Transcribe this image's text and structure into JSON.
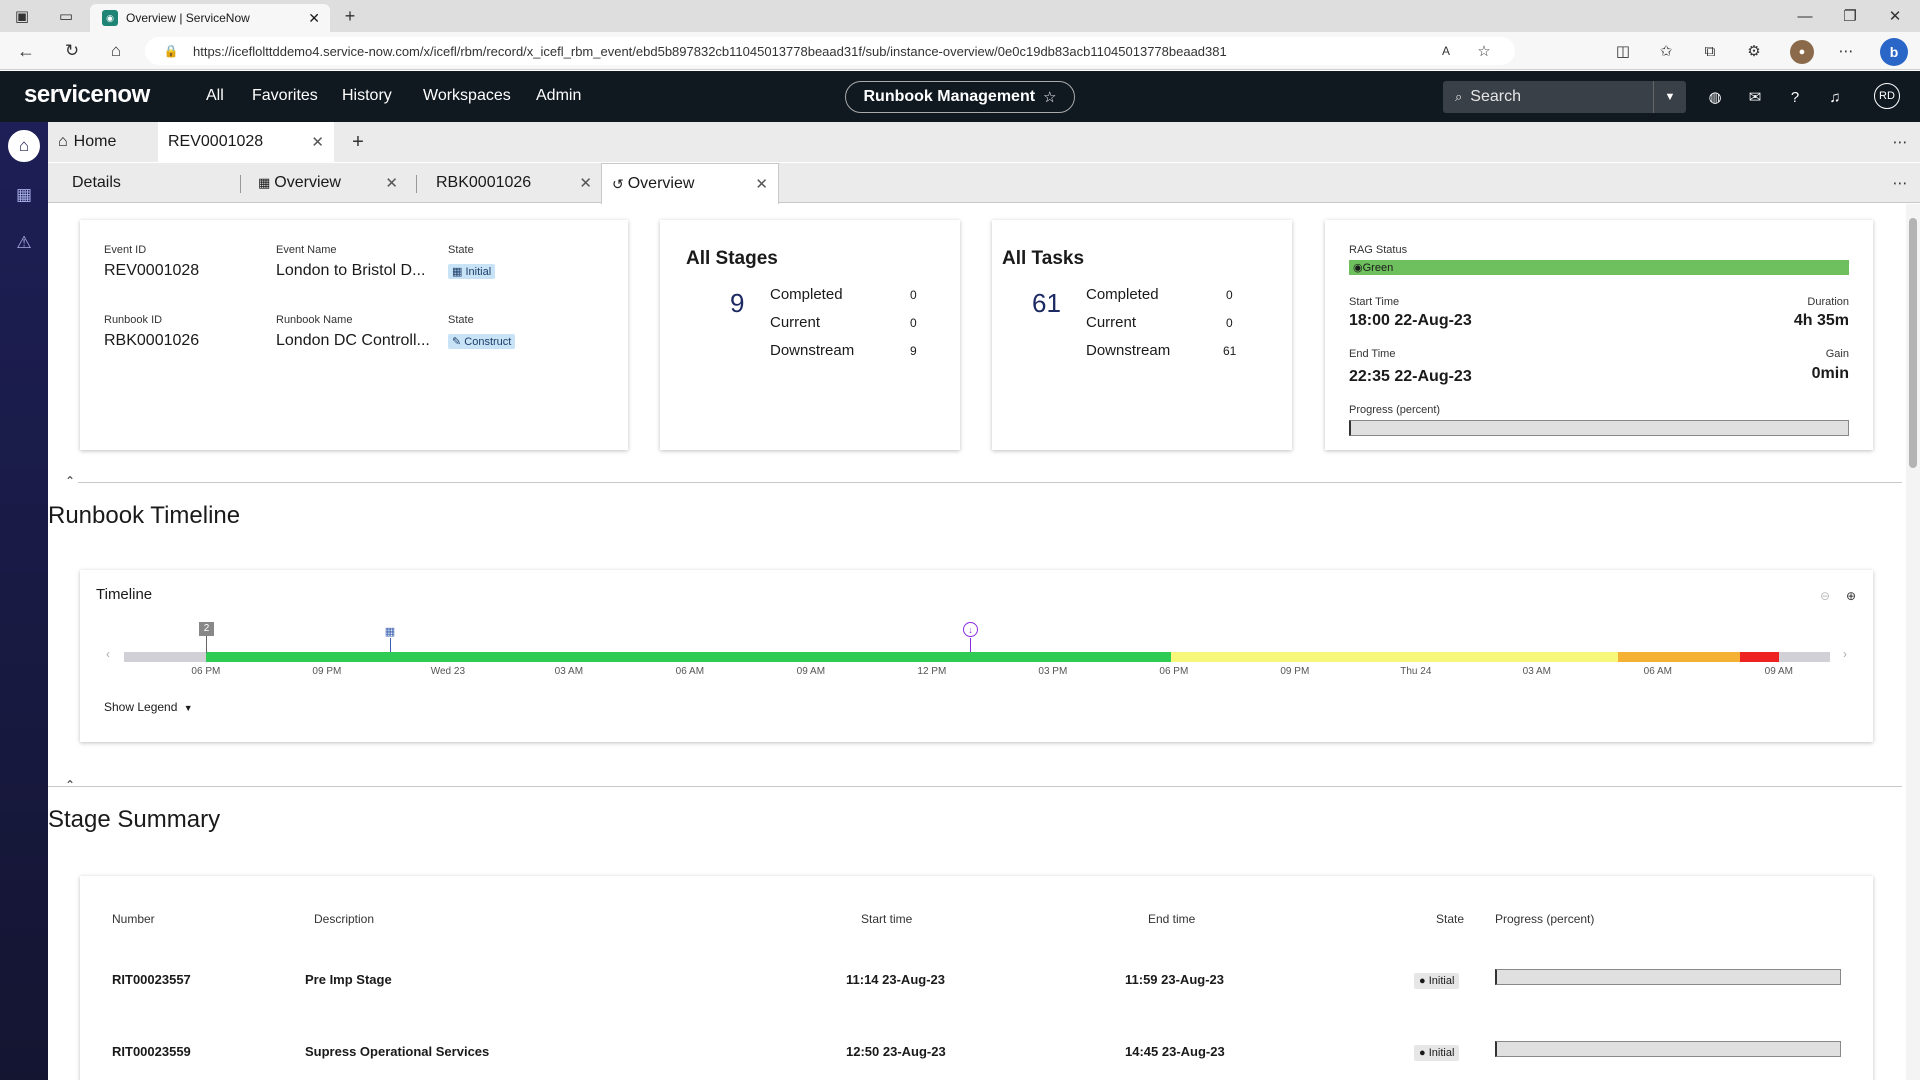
{
  "browser": {
    "tab_title": "Overview | ServiceNow",
    "url": "https://iceflolttddemo4.service-now.com/x/icefl/rbm/record/x_icefl_rbm_event/ebd5b897832cb11045013778beaad31f/sub/instance-overview/0e0c19db83acb11045013778beaad381"
  },
  "header": {
    "logo": "servicenow",
    "nav": [
      "All",
      "Favorites",
      "History",
      "Workspaces",
      "Admin"
    ],
    "app_pill": "Runbook Management",
    "search_placeholder": "Search"
  },
  "workspace_tabs": {
    "home": "Home",
    "record": "REV0001028"
  },
  "sub_tabs": [
    "Details",
    "Overview",
    "RBK0001026",
    "Overview"
  ],
  "event_card": {
    "event_id_label": "Event ID",
    "event_id": "REV0001028",
    "event_name_label": "Event Name",
    "event_name": "London to Bristol D...",
    "state_label": "State",
    "state": "Initial",
    "runbook_id_label": "Runbook ID",
    "runbook_id": "RBK0001026",
    "runbook_name_label": "Runbook Name",
    "runbook_name": "London DC Controll...",
    "state2_label": "State",
    "state2": "Construct"
  },
  "stages_card": {
    "title": "All Stages",
    "total": "9",
    "rows": [
      {
        "label": "Completed",
        "value": "0"
      },
      {
        "label": "Current",
        "value": "0"
      },
      {
        "label": "Downstream",
        "value": "9"
      }
    ]
  },
  "tasks_card": {
    "title": "All Tasks",
    "total": "61",
    "rows": [
      {
        "label": "Completed",
        "value": "0"
      },
      {
        "label": "Current",
        "value": "0"
      },
      {
        "label": "Downstream",
        "value": "61"
      }
    ]
  },
  "rag_card": {
    "rag_label": "RAG Status",
    "rag_value": "Green",
    "rag_color": "#6ebf5d",
    "start_label": "Start Time",
    "start": "18:00 22-Aug-23",
    "duration_label": "Duration",
    "duration": "4h 35m",
    "end_label": "End Time",
    "end": "22:35 22-Aug-23",
    "gain_label": "Gain",
    "gain": "0min",
    "progress_label": "Progress (percent)",
    "progress": 0
  },
  "timeline_section": {
    "title": "Runbook Timeline",
    "card_title": "Timeline",
    "cluster_count": "2",
    "ticks": [
      "06 PM",
      "09 PM",
      "Wed 23",
      "03 AM",
      "06 AM",
      "09 AM",
      "12 PM",
      "03 PM",
      "06 PM",
      "09 PM",
      "Thu 24",
      "03 AM",
      "06 AM",
      "09 AM"
    ],
    "show_legend": "Show Legend",
    "colors": {
      "green": "#2ecc55",
      "yellow": "#f7f77a",
      "orange": "#f5b133",
      "red": "#ee2222",
      "grey": "#d0d0d6"
    }
  },
  "stage_summary": {
    "title": "Stage Summary",
    "columns": [
      "Number",
      "Description",
      "Start time",
      "End time",
      "State",
      "Progress (percent)"
    ],
    "rows": [
      {
        "number": "RIT00023557",
        "description": "Pre Imp Stage",
        "start": "11:14 23-Aug-23",
        "end": "11:59 23-Aug-23",
        "state": "Initial",
        "progress": 0
      },
      {
        "number": "RIT00023559",
        "description": "Supress Operational Services",
        "start": "12:50 23-Aug-23",
        "end": "14:45 23-Aug-23",
        "state": "Initial",
        "progress": 0
      }
    ]
  }
}
